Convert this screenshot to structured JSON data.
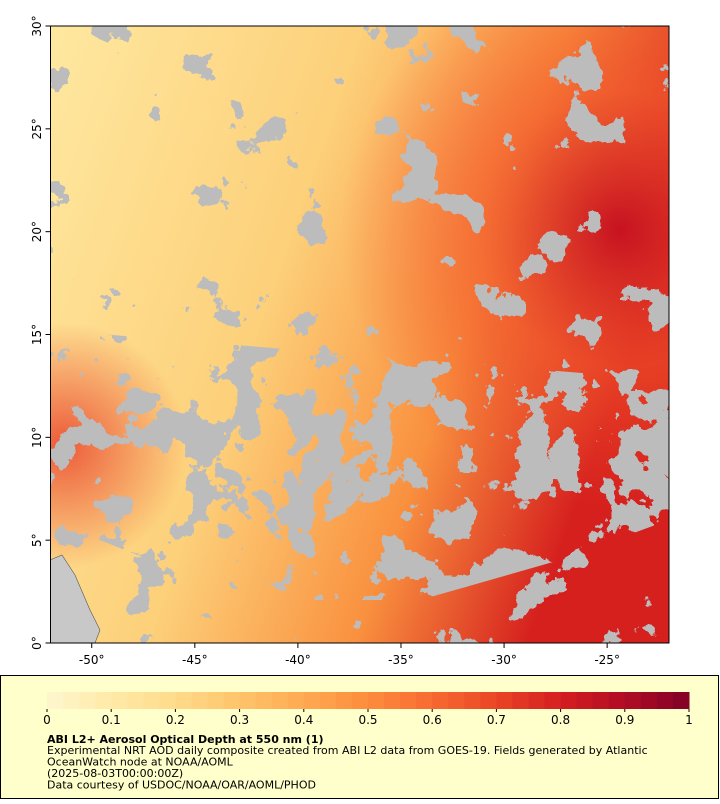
{
  "map": {
    "lonlim": [
      -52,
      -22
    ],
    "latlim": [
      0,
      30
    ],
    "lon_ticks": [
      {
        "value": -50,
        "label": "-50°"
      },
      {
        "value": -45,
        "label": "-45°"
      },
      {
        "value": -40,
        "label": "-40°"
      },
      {
        "value": -35,
        "label": "-35°"
      },
      {
        "value": -30,
        "label": "-30°"
      },
      {
        "value": -25,
        "label": "-25°"
      }
    ],
    "lat_ticks": [
      {
        "value": 0,
        "label": "0°"
      },
      {
        "value": 5,
        "label": "5°"
      },
      {
        "value": 10,
        "label": "10°"
      },
      {
        "value": 15,
        "label": "15°"
      },
      {
        "value": 20,
        "label": "20°"
      },
      {
        "value": 25,
        "label": "25°"
      },
      {
        "value": 30,
        "label": "30°"
      }
    ]
  },
  "colorbar": {
    "range": [
      0,
      1
    ],
    "ticks": [
      0,
      0.1,
      0.2,
      0.3,
      0.4,
      0.5,
      0.6,
      0.7,
      0.8,
      0.9,
      1
    ],
    "colors": [
      "#fff7d0",
      "#ffeaa8",
      "#fedb8a",
      "#fec46a",
      "#feaa52",
      "#fd8c3c",
      "#f86a30",
      "#ea4526",
      "#d41e20",
      "#b00c25",
      "#800026"
    ],
    "steps": 40
  },
  "caption": {
    "title": "ABI L2+ Aerosol Optical Depth at 550 nm (1)",
    "lines": [
      "Experimental NRT AOD daily composite created from ABI L2 data from GOES-19. Fields generated by Atlantic",
      "OceanWatch node at NOAA/AOML",
      "(2025-08-03T00:00:00Z)",
      "Data courtesy of USDOC/NOAA/OAR/AOML/PHOD"
    ]
  }
}
